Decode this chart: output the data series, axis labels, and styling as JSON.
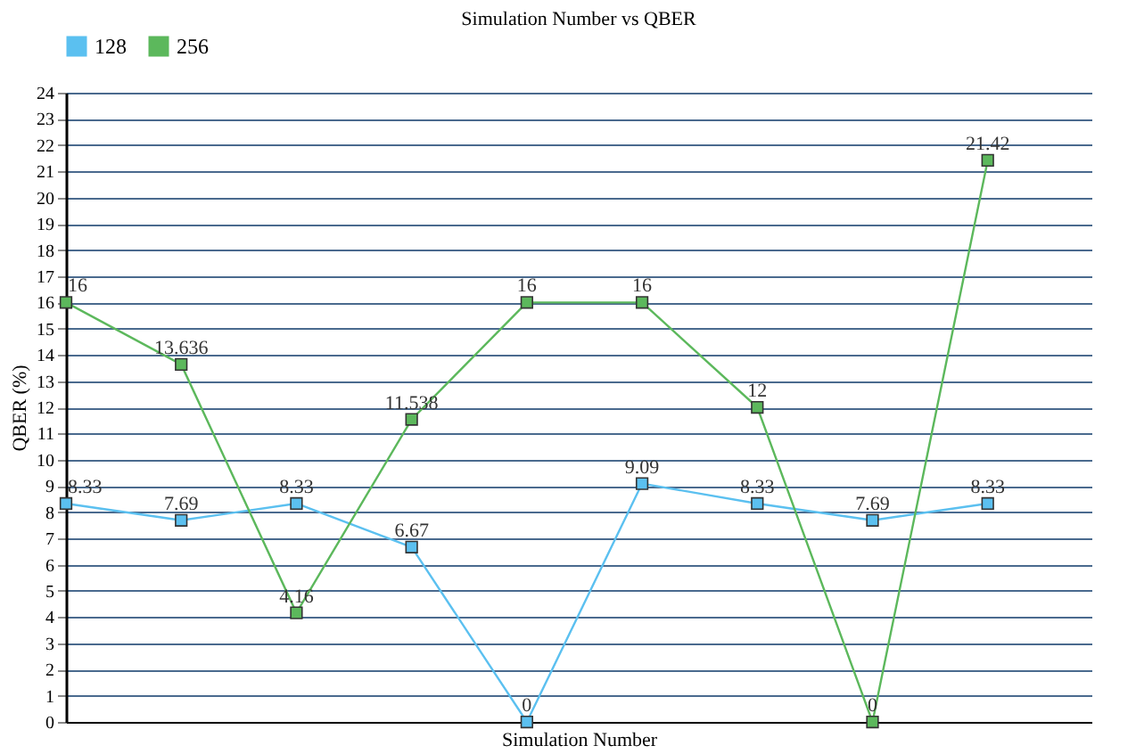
{
  "chart_data": {
    "type": "line",
    "title": "Simulation Number vs QBER",
    "xlabel": "Simulation Number",
    "ylabel": "QBER (%)",
    "categories": [
      null,
      null,
      null,
      null,
      null,
      null,
      null,
      null,
      null
    ],
    "series": [
      {
        "name": "128",
        "color": "#5bc0f0",
        "values": [
          8.33,
          7.69,
          8.33,
          6.67,
          0,
          9.09,
          8.33,
          7.69,
          8.33
        ]
      },
      {
        "name": "256",
        "color": "#5cb85c",
        "values": [
          16,
          13.636,
          4.16,
          11.538,
          16,
          16,
          12,
          0,
          21.42
        ]
      }
    ],
    "ylim": [
      0,
      24
    ],
    "yticks": [
      0,
      1,
      2,
      3,
      4,
      5,
      6,
      7,
      8,
      9,
      10,
      11,
      12,
      13,
      14,
      15,
      16,
      17,
      18,
      19,
      20,
      21,
      22,
      23,
      24
    ],
    "grid": "y",
    "legend": "top left",
    "marker": "square",
    "line_style": "solid",
    "data_labels": true
  }
}
